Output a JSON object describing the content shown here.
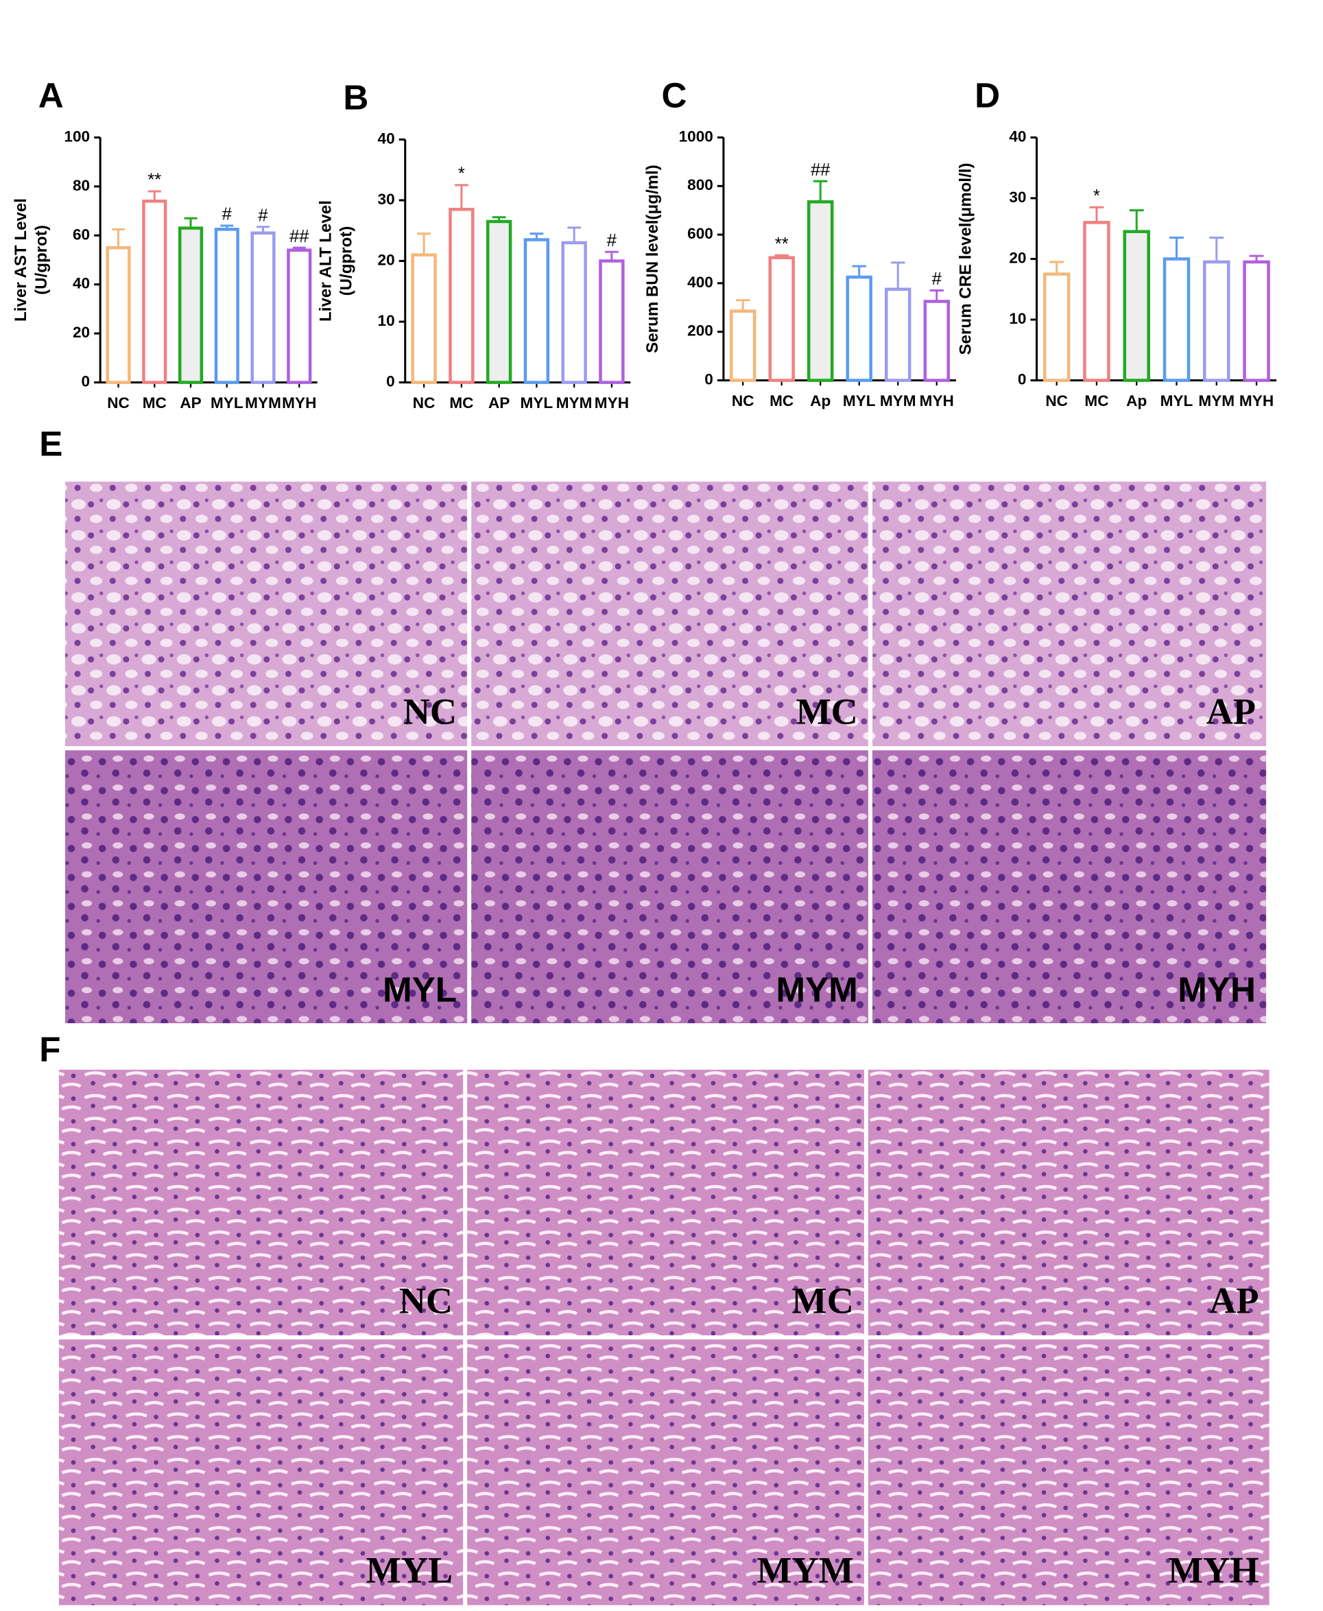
{
  "chart_data": [
    {
      "type": "bar",
      "panel": "A",
      "ylabel": [
        "Liver AST Level",
        "(U/gprot)"
      ],
      "categories": [
        "NC",
        "MC",
        "AP",
        "MYL",
        "MYM",
        "MYH"
      ],
      "values": [
        55,
        74,
        63,
        62.5,
        61,
        54
      ],
      "errors": [
        7.5,
        4,
        4,
        1.5,
        2.5,
        1
      ],
      "annotations": [
        null,
        "**",
        null,
        "#",
        "#",
        "##"
      ],
      "colors": [
        "#f5b77a",
        "#f08080",
        "#22aa22",
        "#5b9bf0",
        "#9b9bf0",
        "#b060e0"
      ],
      "fill_colors": [
        "#ffffff",
        "#ffffff",
        "#eeeeee",
        "#ffffff",
        "#ffffff",
        "#ffffff"
      ],
      "ylim": [
        0,
        100
      ],
      "yticks": [
        0,
        20,
        40,
        60,
        80,
        100
      ]
    },
    {
      "type": "bar",
      "panel": "B",
      "ylabel": [
        "Liver ALT Level",
        "(U/gprot)"
      ],
      "categories": [
        "NC",
        "MC",
        "AP",
        "MYL",
        "MYM",
        "MYH"
      ],
      "values": [
        21,
        28.5,
        26.5,
        23.5,
        23,
        20
      ],
      "errors": [
        3.5,
        4,
        0.7,
        1,
        2.5,
        1.5
      ],
      "annotations": [
        null,
        "*",
        null,
        null,
        null,
        "#"
      ],
      "colors": [
        "#f5b77a",
        "#f08080",
        "#22aa22",
        "#5b9bf0",
        "#9b9bf0",
        "#b060e0"
      ],
      "fill_colors": [
        "#ffffff",
        "#ffffff",
        "#eeeeee",
        "#ffffff",
        "#ffffff",
        "#ffffff"
      ],
      "ylim": [
        0,
        40
      ],
      "yticks": [
        0,
        10,
        20,
        30,
        40
      ]
    },
    {
      "type": "bar",
      "panel": "C",
      "ylabel": [
        "Serum BUN level(μg/ml)"
      ],
      "categories": [
        "NC",
        "MC",
        "Ap",
        "MYL",
        "MYM",
        "MYH"
      ],
      "values": [
        285,
        505,
        735,
        425,
        375,
        325
      ],
      "errors": [
        45,
        10,
        85,
        45,
        110,
        45
      ],
      "annotations": [
        null,
        "**",
        "##",
        null,
        null,
        "#"
      ],
      "colors": [
        "#f5b77a",
        "#f08080",
        "#22aa22",
        "#5b9bf0",
        "#9b9bf0",
        "#b060e0"
      ],
      "fill_colors": [
        "#ffffff",
        "#ffffff",
        "#eeeeee",
        "#ffffff",
        "#ffffff",
        "#ffffff"
      ],
      "ylim": [
        0,
        1000
      ],
      "yticks": [
        0,
        200,
        400,
        600,
        800,
        1000
      ]
    },
    {
      "type": "bar",
      "panel": "D",
      "ylabel": [
        "Serum CRE level(μmol/l)"
      ],
      "categories": [
        "NC",
        "MC",
        "Ap",
        "MYL",
        "MYM",
        "MYH"
      ],
      "values": [
        17.5,
        26,
        24.5,
        20,
        19.5,
        19.5
      ],
      "errors": [
        2,
        2.5,
        3.5,
        3.5,
        4,
        1
      ],
      "annotations": [
        null,
        "*",
        null,
        null,
        null,
        null
      ],
      "colors": [
        "#f5b77a",
        "#f08080",
        "#22aa22",
        "#5b9bf0",
        "#9b9bf0",
        "#b060e0"
      ],
      "fill_colors": [
        "#ffffff",
        "#ffffff",
        "#eeeeee",
        "#ffffff",
        "#ffffff",
        "#ffffff"
      ],
      "ylim": [
        0,
        40
      ],
      "yticks": [
        0,
        10,
        20,
        30,
        40
      ]
    }
  ],
  "histology": [
    {
      "panel": "E",
      "images": [
        {
          "label": "NC"
        },
        {
          "label": "MC"
        },
        {
          "label": "AP"
        },
        {
          "label": "MYL"
        },
        {
          "label": "MYM"
        },
        {
          "label": "MYH"
        }
      ]
    },
    {
      "panel": "F",
      "images": [
        {
          "label": "NC"
        },
        {
          "label": "MC"
        },
        {
          "label": "AP"
        },
        {
          "label": "MYL"
        },
        {
          "label": "MYM"
        },
        {
          "label": "MYH"
        }
      ]
    }
  ]
}
